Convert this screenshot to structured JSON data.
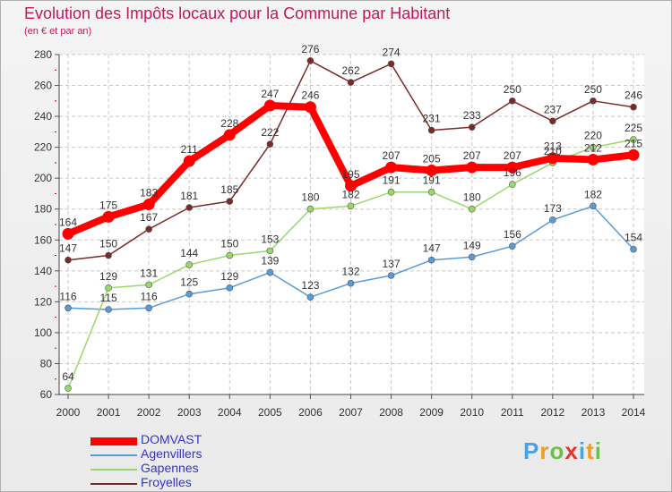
{
  "header": {
    "title": "Evolution des Impôts locaux pour la Commune par Habitant",
    "subtitle": "(en € et par an)"
  },
  "chart_data": {
    "type": "line",
    "title": "Evolution des Impôts locaux pour la Commune par Habitant",
    "subtitle": "(en € et par an)",
    "xlabel": "",
    "ylabel": "",
    "x": [
      "2000",
      "2001",
      "2002",
      "2003",
      "2004",
      "2005",
      "2006",
      "2007",
      "2008",
      "2009",
      "2010",
      "2011",
      "2012",
      "2013",
      "2014"
    ],
    "ylim": [
      60,
      280
    ],
    "yticks": [
      60,
      80,
      100,
      120,
      140,
      160,
      180,
      200,
      220,
      240,
      260,
      280
    ],
    "grid": true,
    "legend_position": "bottom-left",
    "series": [
      {
        "name": "DOMVAST",
        "color": "#ff0000",
        "values": [
          164,
          175,
          183,
          211,
          228,
          247,
          246,
          195,
          207,
          205,
          207,
          207,
          213,
          212,
          215
        ]
      },
      {
        "name": "Agenvillers",
        "color": "#5b9bd5",
        "values": [
          116,
          115,
          116,
          125,
          129,
          139,
          123,
          132,
          137,
          147,
          149,
          156,
          173,
          182,
          154
        ]
      },
      {
        "name": "Gapennes",
        "color": "#9ad86a",
        "values": [
          64,
          129,
          131,
          144,
          150,
          153,
          180,
          182,
          191,
          191,
          180,
          196,
          210,
          220,
          225
        ]
      },
      {
        "name": "Froyelles",
        "color": "#7b2a2a",
        "values": [
          147,
          150,
          167,
          181,
          185,
          222,
          276,
          262,
          274,
          231,
          233,
          250,
          237,
          250,
          246
        ]
      }
    ]
  },
  "legend": {
    "items": [
      {
        "label": "DOMVAST",
        "color": "#ff0000",
        "text_color": "#3333cc"
      },
      {
        "label": "Agenvillers",
        "color": "#5b9bd5",
        "text_color": "#3333cc"
      },
      {
        "label": "Gapennes",
        "color": "#9ad86a",
        "text_color": "#3333cc"
      },
      {
        "label": "Froyelles",
        "color": "#7b2a2a",
        "text_color": "#3333cc"
      }
    ]
  },
  "logo": {
    "letters": [
      "P",
      "r",
      "o",
      "x",
      "i",
      "t",
      "i"
    ],
    "colors": [
      "#4aa3df",
      "#f29c1f",
      "#6cc04a",
      "#e3342f",
      "#4aa3df",
      "#f29c1f",
      "#6cc04a"
    ]
  }
}
